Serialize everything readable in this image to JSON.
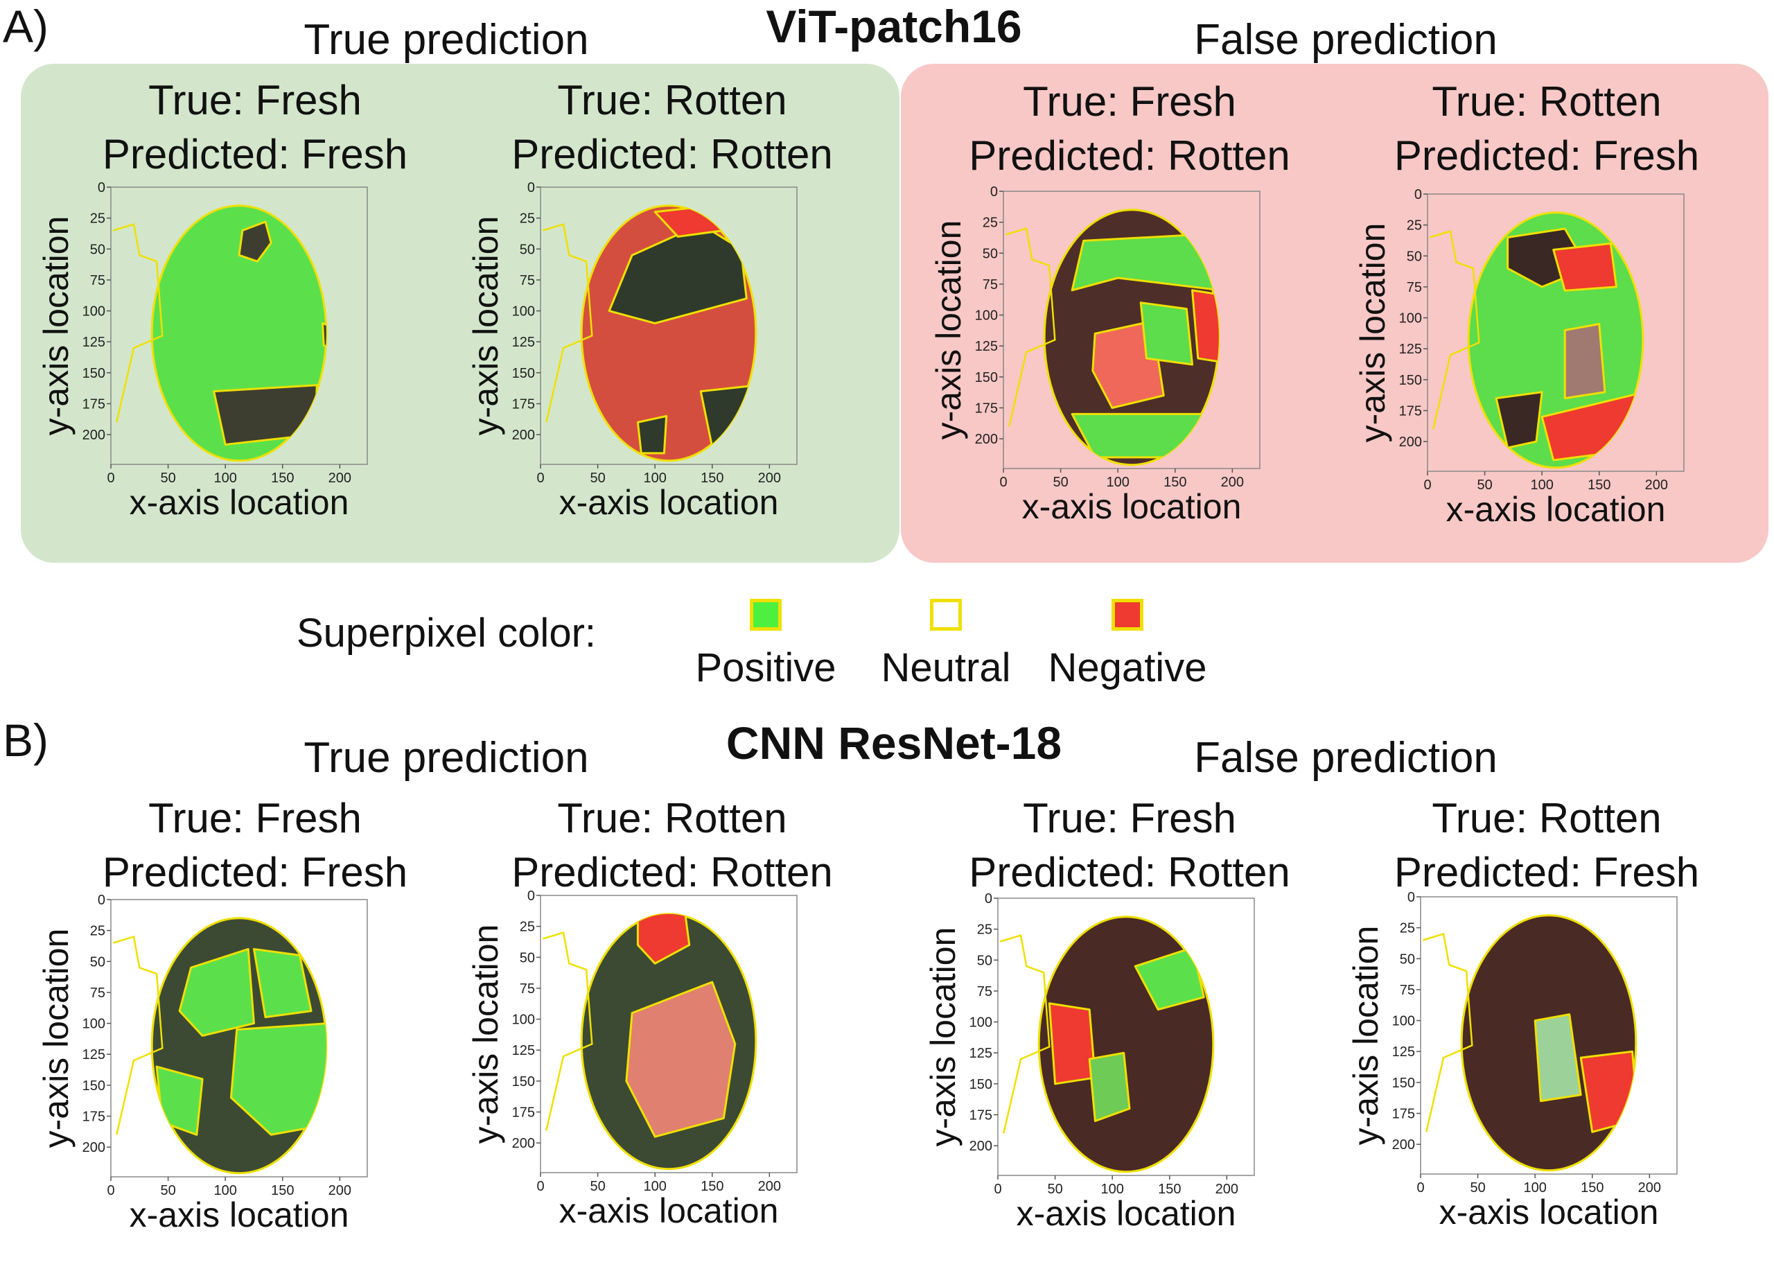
{
  "sections": [
    {
      "letter": "A)",
      "model": "ViT-patch16",
      "true_group": "True prediction",
      "false_group": "False prediction",
      "plots": [
        {
          "true_line": "True: Fresh",
          "pred_line": "Predicted: Fresh",
          "shade": "fresh",
          "pattern": "vit1"
        },
        {
          "true_line": "True: Rotten",
          "pred_line": "Predicted: Rotten",
          "shade": "fresh",
          "pattern": "vit2"
        },
        {
          "true_line": "True: Fresh",
          "pred_line": "Predicted: Rotten",
          "shade": "mixed",
          "pattern": "vit3"
        },
        {
          "true_line": "True: Rotten",
          "pred_line": "Predicted: Fresh",
          "shade": "mixed",
          "pattern": "vit4"
        }
      ]
    },
    {
      "letter": "B)",
      "model": "CNN ResNet-18",
      "true_group": "True prediction",
      "false_group": "False prediction",
      "plots": [
        {
          "true_line": "True: Fresh",
          "pred_line": "Predicted: Fresh",
          "shade": "dark",
          "pattern": "cnn1"
        },
        {
          "true_line": "True: Rotten",
          "pred_line": "Predicted: Rotten",
          "shade": "dark",
          "pattern": "cnn2"
        },
        {
          "true_line": "True: Fresh",
          "pred_line": "Predicted: Rotten",
          "shade": "brown",
          "pattern": "cnn3"
        },
        {
          "true_line": "True: Rotten",
          "pred_line": "Predicted: Fresh",
          "shade": "brown",
          "pattern": "cnn4"
        }
      ]
    }
  ],
  "axes": {
    "xlabel": "x-axis location",
    "ylabel": "y-axis location",
    "xticks": [
      "0",
      "50",
      "100",
      "150",
      "200"
    ],
    "yticks": [
      "0",
      "25",
      "50",
      "75",
      "100",
      "125",
      "150",
      "175",
      "200"
    ]
  },
  "legend": {
    "title": "Superpixel color:",
    "items": [
      {
        "label": "Positive",
        "color": "#4ef040"
      },
      {
        "label": "Neutral",
        "color": "#ffffff"
      },
      {
        "label": "Negative",
        "color": "#ee3a30"
      }
    ],
    "border_color": "#f0e000"
  },
  "colors": {
    "panel_true": "#d3e6cc",
    "panel_false": "#f7c8c6",
    "positive": "#4ef040",
    "negative": "#ee3a30",
    "boundary": "#f0e000"
  }
}
